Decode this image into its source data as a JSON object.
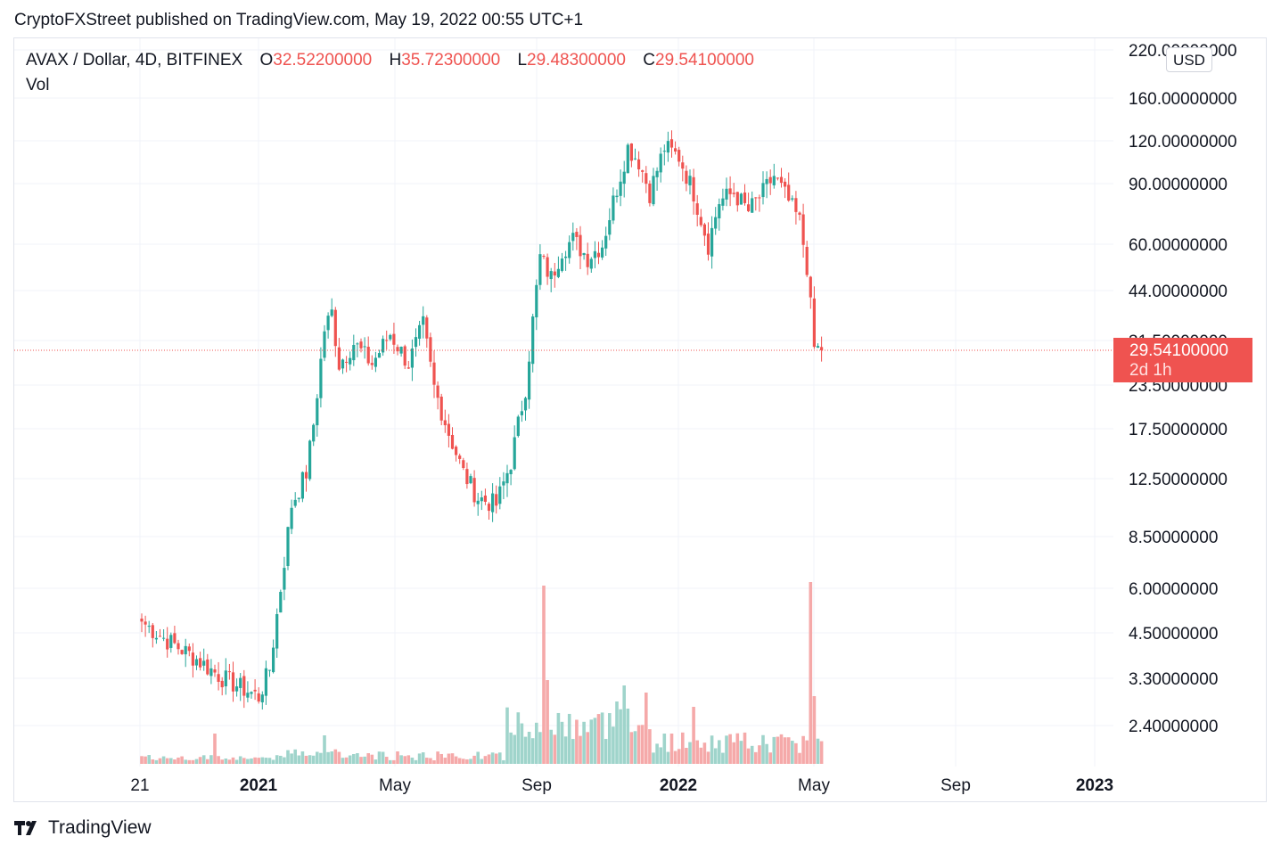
{
  "header": {
    "published": "CryptoFXStreet published on TradingView.com, May 19, 2022 00:55 UTC+1"
  },
  "legend": {
    "symbol": "AVAX / Dollar, 4D, BITFINEX",
    "o_label": "O",
    "o_value": "32.52200000",
    "h_label": "H",
    "h_value": "35.72300000",
    "l_label": "L",
    "l_value": "29.48300000",
    "c_label": "C",
    "c_value": "29.54100000",
    "vol": "Vol"
  },
  "currency": "USD",
  "price_tag": {
    "price": "29.54100000",
    "countdown": "2d 1h"
  },
  "footer": {
    "brand": "TradingView"
  },
  "colors": {
    "up": "#26a69a",
    "down": "#ef5350",
    "up_vol": "#9fd4cb",
    "down_vol": "#f5a9a9",
    "grid": "#f0f3fa"
  },
  "chart_data": {
    "type": "candlestick",
    "y_scale": "log",
    "y_ticks": [
      "220.00000000",
      "160.00000000",
      "120.00000000",
      "90.00000000",
      "60.00000000",
      "44.00000000",
      "31.50000000",
      "23.50000000",
      "17.50000000",
      "12.50000000",
      "8.50000000",
      "6.00000000",
      "4.50000000",
      "3.30000000",
      "2.40000000"
    ],
    "x_ticks": [
      {
        "label": "21",
        "bold": false
      },
      {
        "label": "2021",
        "bold": true
      },
      {
        "label": "May",
        "bold": false
      },
      {
        "label": "Sep",
        "bold": false
      },
      {
        "label": "2022",
        "bold": true
      },
      {
        "label": "May",
        "bold": false
      },
      {
        "label": "Sep",
        "bold": false
      },
      {
        "label": "2023",
        "bold": true
      }
    ],
    "last_price": 29.541,
    "anchors": [
      {
        "bar": 0,
        "price": 4.8
      },
      {
        "bar": 6,
        "price": 4.3
      },
      {
        "bar": 14,
        "price": 3.8
      },
      {
        "bar": 22,
        "price": 3.3
      },
      {
        "bar": 32,
        "price": 2.9
      },
      {
        "bar": 35,
        "price": 3.5
      },
      {
        "bar": 38,
        "price": 6.0
      },
      {
        "bar": 41,
        "price": 10.5
      },
      {
        "bar": 45,
        "price": 13.0
      },
      {
        "bar": 47,
        "price": 18.0
      },
      {
        "bar": 50,
        "price": 34.0
      },
      {
        "bar": 52,
        "price": 38.0
      },
      {
        "bar": 54,
        "price": 27.0
      },
      {
        "bar": 58,
        "price": 31.0
      },
      {
        "bar": 63,
        "price": 27.0
      },
      {
        "bar": 68,
        "price": 33.0
      },
      {
        "bar": 73,
        "price": 27.0
      },
      {
        "bar": 77,
        "price": 35.0
      },
      {
        "bar": 80,
        "price": 23.0
      },
      {
        "bar": 84,
        "price": 17.0
      },
      {
        "bar": 88,
        "price": 13.0
      },
      {
        "bar": 92,
        "price": 11.0
      },
      {
        "bar": 97,
        "price": 10.5
      },
      {
        "bar": 101,
        "price": 14.0
      },
      {
        "bar": 105,
        "price": 23.0
      },
      {
        "bar": 107,
        "price": 36.0
      },
      {
        "bar": 109,
        "price": 55.0
      },
      {
        "bar": 112,
        "price": 48.0
      },
      {
        "bar": 115,
        "price": 58.0
      },
      {
        "bar": 118,
        "price": 62.0
      },
      {
        "bar": 122,
        "price": 55.0
      },
      {
        "bar": 126,
        "price": 60.0
      },
      {
        "bar": 129,
        "price": 80.0
      },
      {
        "bar": 133,
        "price": 115.0
      },
      {
        "bar": 136,
        "price": 105.0
      },
      {
        "bar": 139,
        "price": 85.0
      },
      {
        "bar": 143,
        "price": 115.0
      },
      {
        "bar": 147,
        "price": 108.0
      },
      {
        "bar": 151,
        "price": 85.0
      },
      {
        "bar": 155,
        "price": 60.0
      },
      {
        "bar": 158,
        "price": 80.0
      },
      {
        "bar": 162,
        "price": 85.0
      },
      {
        "bar": 166,
        "price": 75.0
      },
      {
        "bar": 170,
        "price": 85.0
      },
      {
        "bar": 173,
        "price": 95.0
      },
      {
        "bar": 177,
        "price": 80.0
      },
      {
        "bar": 180,
        "price": 70.0
      },
      {
        "bar": 182,
        "price": 52.0
      },
      {
        "bar": 184,
        "price": 30.0
      },
      {
        "bar": 186,
        "price": 29.541
      }
    ],
    "volume_spikes": [
      {
        "bar": 20,
        "value": 0.17
      },
      {
        "bar": 50,
        "value": 0.16
      },
      {
        "bar": 106,
        "value": 0.18
      },
      {
        "bar": 110,
        "value": 1.0
      },
      {
        "bar": 111,
        "value": 0.47
      },
      {
        "bar": 130,
        "value": 0.35
      },
      {
        "bar": 132,
        "value": 0.44
      },
      {
        "bar": 133,
        "value": 0.31
      },
      {
        "bar": 138,
        "value": 0.4
      },
      {
        "bar": 151,
        "value": 0.32
      },
      {
        "bar": 183,
        "value": 1.02
      },
      {
        "bar": 184,
        "value": 0.38
      }
    ]
  }
}
